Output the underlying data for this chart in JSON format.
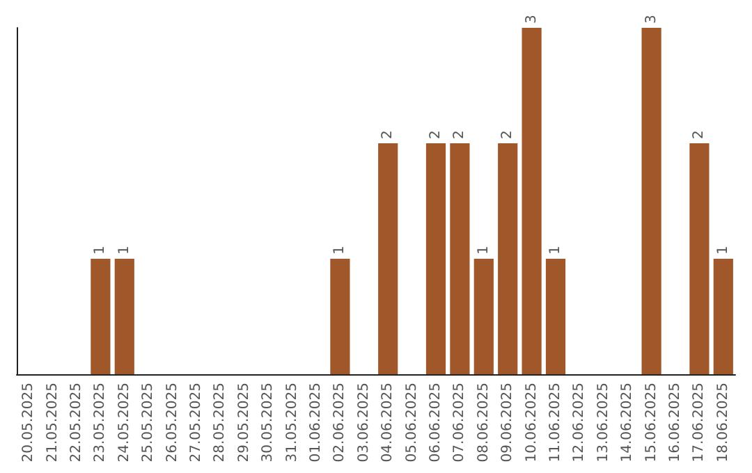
{
  "chart_data": {
    "type": "bar",
    "categories": [
      "20.05.2025",
      "21.05.2025",
      "22.05.2025",
      "23.05.2025",
      "24.05.2025",
      "25.05.2025",
      "26.05.2025",
      "27.05.2025",
      "28.05.2025",
      "29.05.2025",
      "30.05.2025",
      "31.05.2025",
      "01.06.2025",
      "02.06.2025",
      "03.06.2025",
      "04.06.2025",
      "05.06.2025",
      "06.06.2025",
      "07.06.2025",
      "08.06.2025",
      "09.06.2025",
      "10.06.2025",
      "11.06.2025",
      "12.06.2025",
      "13.06.2025",
      "14.06.2025",
      "15.06.2025",
      "16.06.2025",
      "17.06.2025",
      "18.06.2025"
    ],
    "values": [
      0,
      0,
      0,
      1,
      1,
      0,
      0,
      0,
      0,
      0,
      0,
      0,
      0,
      1,
      0,
      2,
      0,
      2,
      2,
      1,
      2,
      3,
      1,
      0,
      0,
      0,
      3,
      0,
      2,
      1
    ],
    "value_labels": [
      null,
      null,
      null,
      "1",
      "1",
      null,
      null,
      null,
      null,
      null,
      null,
      null,
      null,
      "1",
      null,
      "2",
      null,
      "2",
      "2",
      "1",
      "2",
      "3",
      "1",
      null,
      null,
      null,
      "3",
      null,
      "2",
      "1"
    ],
    "color": "#a0582a",
    "grid": false,
    "tick_labels": "x"
  }
}
